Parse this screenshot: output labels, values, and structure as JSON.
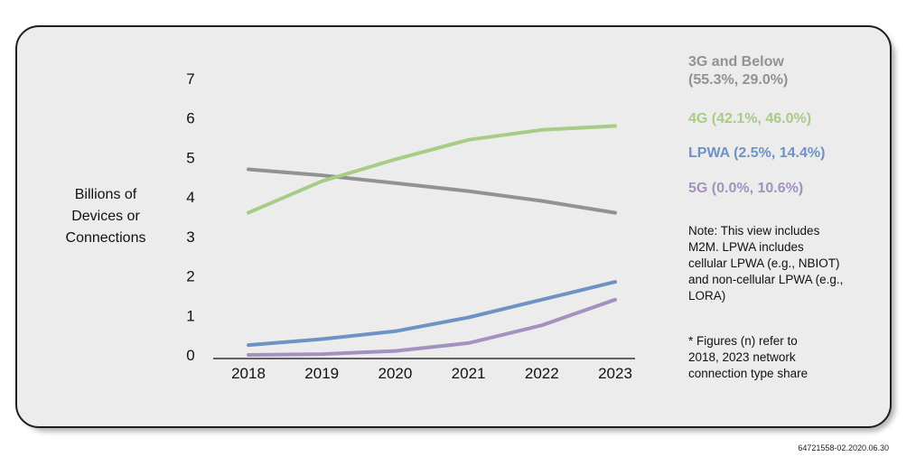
{
  "chart_data": {
    "type": "line",
    "title": "",
    "ylabel_lines": [
      "Billions of",
      "Devices or",
      "Connections"
    ],
    "xlabel": "",
    "x": [
      "2018",
      "2019",
      "2020",
      "2021",
      "2022",
      "2023"
    ],
    "yticks": [
      "0",
      "1",
      "2",
      "3",
      "4",
      "5",
      "6",
      "7"
    ],
    "ylim": [
      0,
      7
    ],
    "grid": false,
    "legend_position": "right",
    "series": [
      {
        "name": "3G and Below (55.3%, 29.0%)",
        "color": "#929292",
        "values": [
          4.7,
          4.55,
          4.35,
          4.15,
          3.9,
          3.6
        ]
      },
      {
        "name": "4G (42.1%, 46.0%)",
        "color": "#a8cc86",
        "values": [
          3.6,
          4.4,
          4.95,
          5.45,
          5.7,
          5.8
        ]
      },
      {
        "name": "LPWA (2.5%, 14.4%)",
        "color": "#6f92c6",
        "values": [
          0.25,
          0.4,
          0.6,
          0.95,
          1.4,
          1.85
        ]
      },
      {
        "name": "5G (0.0%, 10.6%)",
        "color": "#a392be",
        "values": [
          0.0,
          0.02,
          0.1,
          0.3,
          0.75,
          1.4
        ]
      }
    ]
  },
  "note_lines": [
    "Note: This view includes",
    "M2M. LPWA includes",
    "cellular LPWA (e.g., NBIOT)",
    "and non-cellular LPWA (e.g.,",
    "LORA)"
  ],
  "footnote_lines": [
    "* Figures (n) refer to",
    "2018, 2023 network",
    "connection type share"
  ],
  "footer_id": "64721558-02.2020.06.30"
}
